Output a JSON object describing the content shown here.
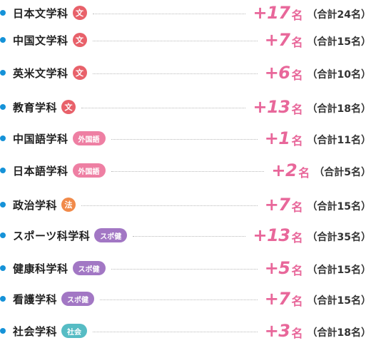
{
  "colors": {
    "bullet": "#1592d8",
    "count": "#e8679a",
    "badge_bun": "#e8616a",
    "badge_gaikokugo": "#ee7fa3",
    "badge_hou": "#f18a4a",
    "badge_supo": "#a277c4",
    "badge_shakai": "#56bcc4"
  },
  "rows": [
    {
      "dept": "日本文学科",
      "badge": "文",
      "badge_type": "circle",
      "badge_color": "#e8616a",
      "increase": "+17",
      "unit": "名",
      "total": "（合計24名）"
    },
    {
      "dept": "中国文学科",
      "badge": "文",
      "badge_type": "circle",
      "badge_color": "#e8616a",
      "increase": "+7",
      "unit": "名",
      "total": "（合計15名）"
    },
    {
      "dept": "英米文学科",
      "badge": "文",
      "badge_type": "circle",
      "badge_color": "#e8616a",
      "increase": "+6",
      "unit": "名",
      "total": "（合計10名）"
    },
    {
      "dept": "教育学科",
      "badge": "文",
      "badge_type": "circle",
      "badge_color": "#e8616a",
      "increase": "+13",
      "unit": "名",
      "total": "（合計18名）"
    },
    {
      "dept": "中国語学科",
      "badge": "外国語",
      "badge_type": "pill",
      "badge_color": "#ee7fa3",
      "increase": "+1",
      "unit": "名",
      "total": "（合計11名）"
    },
    {
      "dept": "日本語学科",
      "badge": "外国語",
      "badge_type": "pill",
      "badge_color": "#ee7fa3",
      "increase": "+2",
      "unit": "名",
      "total": "（合計5名）"
    },
    {
      "dept": "政治学科",
      "badge": "法",
      "badge_type": "circle",
      "badge_color": "#f18a4a",
      "increase": "+7",
      "unit": "名",
      "total": "（合計15名）"
    },
    {
      "dept": "スポーツ科学科",
      "badge": "スポ健",
      "badge_type": "pill",
      "badge_color": "#a277c4",
      "increase": "+13",
      "unit": "名",
      "total": "（合計35名）"
    },
    {
      "dept": "健康科学科",
      "badge": "スポ健",
      "badge_type": "pill",
      "badge_color": "#a277c4",
      "increase": "+5",
      "unit": "名",
      "total": "（合計15名）"
    },
    {
      "dept": "看護学科",
      "badge": "スポ健",
      "badge_type": "pill",
      "badge_color": "#a277c4",
      "increase": "+7",
      "unit": "名",
      "total": "（合計15名）"
    },
    {
      "dept": "社会学科",
      "badge": "社会",
      "badge_type": "pill",
      "badge_color": "#56bcc4",
      "increase": "+3",
      "unit": "名",
      "total": "（合計18名）"
    }
  ]
}
